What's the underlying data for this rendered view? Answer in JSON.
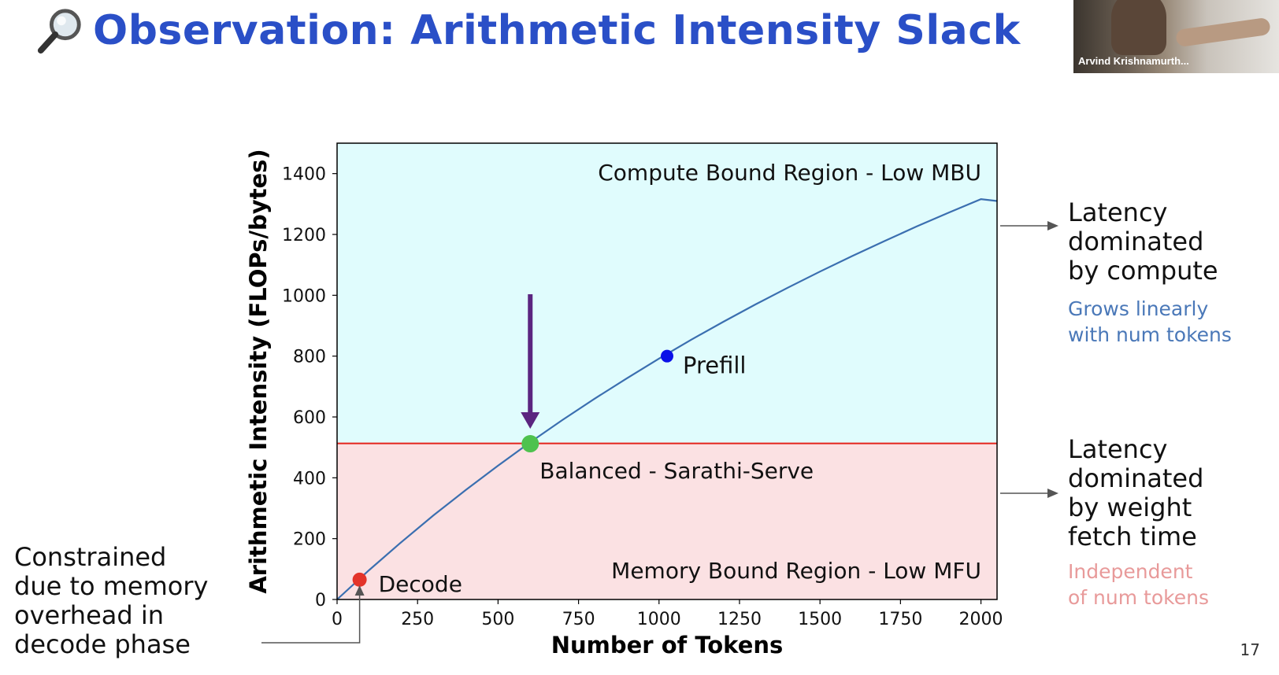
{
  "title": "Observation: Arithmetic Intensity Slack",
  "title_icon": "magnifying-glass-icon",
  "webcam": {
    "name": "Arvind Krishnamurth..."
  },
  "slide_number": "17",
  "right_notes": {
    "compute": {
      "main": [
        "Latency",
        "dominated",
        "by compute"
      ],
      "sub": [
        "Grows linearly",
        "with num tokens"
      ]
    },
    "memory": {
      "main": [
        "Latency",
        "dominated",
        "by weight",
        "fetch time"
      ],
      "sub": [
        "Independent",
        "of num tokens"
      ]
    }
  },
  "left_note": [
    "Constrained",
    "due to memory",
    "overhead in",
    "decode phase"
  ],
  "colors": {
    "title": "#2a4fc7",
    "compute_region": "#e0fcfd",
    "memory_region": "#fbe1e3",
    "curve": "#3b6fb0",
    "threshold": "#e4231c",
    "arrow": "#5b2580",
    "prefill": "#0a10e8",
    "balanced": "#4ec24e",
    "decode": "#e3342a"
  },
  "chart_data": {
    "type": "line",
    "xlabel": "Number of Tokens",
    "ylabel": "Arithmetic Intensity (FLOPs/bytes)",
    "xlim": [
      0,
      2050
    ],
    "ylim": [
      0,
      1500
    ],
    "xticks": [
      0,
      250,
      500,
      750,
      1000,
      1250,
      1500,
      1750,
      2000
    ],
    "yticks": [
      0,
      200,
      400,
      600,
      800,
      1000,
      1200,
      1400
    ],
    "series": [
      {
        "x": [
          0,
          100,
          200,
          300,
          400,
          500,
          600,
          700,
          800,
          900,
          1000,
          1100,
          1200,
          1300,
          1400,
          1500,
          1600,
          1700,
          1800,
          1900,
          2000,
          2050
        ],
        "y": [
          0,
          97,
          189,
          277,
          360,
          440,
          517,
          590,
          660,
          727,
          792,
          854,
          913,
          970,
          1025,
          1078,
          1129,
          1178,
          1226,
          1272,
          1316,
          1310
        ]
      }
    ],
    "threshold_y": 513,
    "points": [
      {
        "label": "Prefill",
        "x": 1025,
        "y": 800
      },
      {
        "label": "Balanced - Sarathi-Serve",
        "x": 600,
        "y": 512
      },
      {
        "label": "Decode",
        "x": 70,
        "y": 65
      }
    ],
    "region_labels": {
      "compute": "Compute Bound Region - Low MBU",
      "memory": "Memory Bound Region - Low MFU"
    },
    "grid": false
  }
}
